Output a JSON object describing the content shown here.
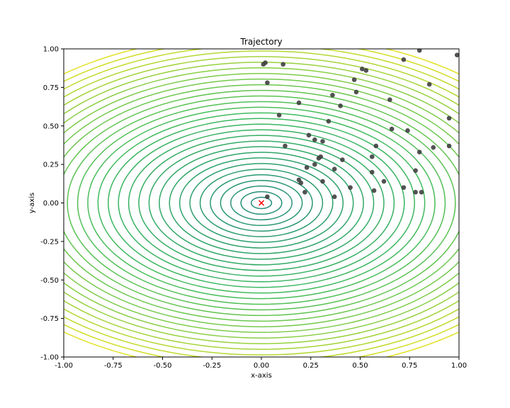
{
  "chart_data": {
    "type": "scatter",
    "title": "Trajectory",
    "xlabel": "x-axis",
    "ylabel": "y-axis",
    "xlim": [
      -1.0,
      1.0
    ],
    "ylim": [
      -1.0,
      1.0
    ],
    "x_ticks": [
      "-1.00",
      "-0.75",
      "-0.50",
      "-0.25",
      "0.00",
      "0.25",
      "0.50",
      "0.75",
      "1.00"
    ],
    "y_ticks": [
      "-1.00",
      "-0.75",
      "-0.50",
      "-0.25",
      "0.00",
      "0.25",
      "0.50",
      "0.75",
      "1.00"
    ],
    "grid": false,
    "contour": {
      "function": "x^2 + 2*y^2 (elliptical bowl)",
      "colormap": "viridis-like (teal to yellow)",
      "level_count": 30
    },
    "series": [
      {
        "marker": "circle",
        "color": "#3f3f3f",
        "points": [
          [
            0.01,
            0.9
          ],
          [
            0.02,
            0.91
          ],
          [
            0.11,
            0.9
          ],
          [
            0.03,
            0.78
          ],
          [
            0.09,
            0.57
          ],
          [
            0.19,
            0.65
          ],
          [
            0.36,
            0.7
          ],
          [
            0.4,
            0.63
          ],
          [
            0.51,
            0.87
          ],
          [
            0.53,
            0.86
          ],
          [
            0.47,
            0.8
          ],
          [
            0.48,
            0.72
          ],
          [
            0.72,
            0.93
          ],
          [
            0.8,
            0.99
          ],
          [
            0.99,
            0.96
          ],
          [
            0.85,
            0.77
          ],
          [
            0.65,
            0.67
          ],
          [
            0.34,
            0.53
          ],
          [
            0.24,
            0.44
          ],
          [
            0.27,
            0.41
          ],
          [
            0.31,
            0.4
          ],
          [
            0.12,
            0.37
          ],
          [
            0.58,
            0.37
          ],
          [
            0.66,
            0.48
          ],
          [
            0.74,
            0.47
          ],
          [
            0.87,
            0.36
          ],
          [
            0.95,
            0.55
          ],
          [
            0.95,
            0.37
          ],
          [
            0.8,
            0.33
          ],
          [
            0.56,
            0.3
          ],
          [
            0.41,
            0.28
          ],
          [
            0.3,
            0.3
          ],
          [
            0.29,
            0.29
          ],
          [
            0.27,
            0.25
          ],
          [
            0.23,
            0.23
          ],
          [
            0.37,
            0.22
          ],
          [
            0.56,
            0.2
          ],
          [
            0.78,
            0.21
          ],
          [
            0.19,
            0.15
          ],
          [
            0.2,
            0.13
          ],
          [
            0.31,
            0.14
          ],
          [
            0.62,
            0.14
          ],
          [
            0.45,
            0.1
          ],
          [
            0.72,
            0.1
          ],
          [
            0.22,
            0.07
          ],
          [
            0.57,
            0.08
          ],
          [
            0.78,
            0.07
          ],
          [
            0.81,
            0.07
          ],
          [
            0.03,
            0.04
          ],
          [
            0.37,
            0.04
          ]
        ]
      },
      {
        "marker": "x",
        "color": "#ff0000",
        "points": [
          [
            0.0,
            0.0
          ]
        ]
      }
    ]
  }
}
